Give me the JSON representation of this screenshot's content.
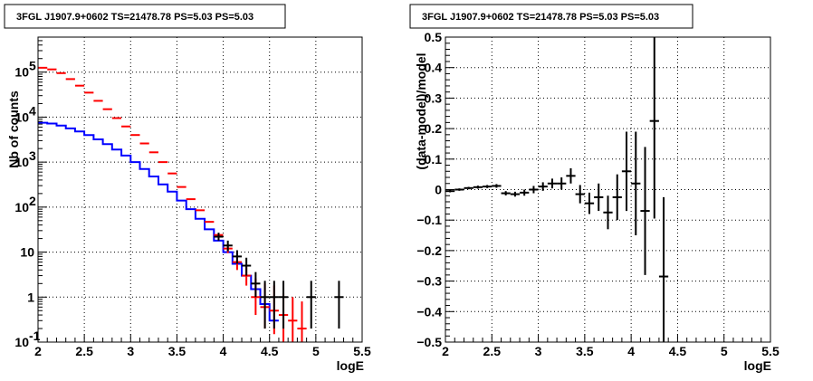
{
  "chart_data": [
    {
      "type": "step-histogram",
      "title": "3FGL J1907.9+0602 TS=21478.78 PS=5.03 PS=5.03",
      "xlabel": "logE",
      "ylabel": "Nb of counts",
      "xlim": [
        2,
        5.5
      ],
      "ylim": [
        0.1,
        600000
      ],
      "yscale": "log",
      "grid": true,
      "x_ticks": [
        "2",
        "2.5",
        "3",
        "3.5",
        "4",
        "4.5",
        "5",
        "5.5"
      ],
      "y_ticks": [
        {
          "value": 0.1,
          "label": "10",
          "exp": "-1"
        },
        {
          "value": 1,
          "label": "1",
          "exp": ""
        },
        {
          "value": 10,
          "label": "10",
          "exp": ""
        },
        {
          "value": 100,
          "label": "10",
          "exp": "2"
        },
        {
          "value": 1000,
          "label": "10",
          "exp": "3"
        },
        {
          "value": 10000,
          "label": "10",
          "exp": "4"
        },
        {
          "value": 100000,
          "label": "10",
          "exp": "5"
        }
      ],
      "bin_width": 0.1,
      "series": [
        {
          "color": "#0000ff",
          "style": "step",
          "x": [
            2.05,
            2.15,
            2.25,
            2.35,
            2.45,
            2.55,
            2.65,
            2.75,
            2.85,
            2.95,
            3.05,
            3.15,
            3.25,
            3.35,
            3.45,
            3.55,
            3.65,
            3.75,
            3.85,
            3.95,
            4.05,
            4.15,
            4.25,
            4.35,
            4.45,
            4.55
          ],
          "y": [
            7500,
            7200,
            6500,
            5600,
            4800,
            4000,
            3200,
            2500,
            1900,
            1400,
            1000,
            700,
            480,
            320,
            220,
            140,
            90,
            55,
            32,
            18,
            10,
            5.5,
            3,
            1.5,
            0.7,
            0.3
          ]
        },
        {
          "color": "#ff0000",
          "style": "error",
          "x": [
            2.05,
            2.15,
            2.25,
            2.35,
            2.45,
            2.55,
            2.65,
            2.75,
            2.85,
            2.95,
            3.05,
            3.15,
            3.25,
            3.35,
            3.45,
            3.55,
            3.65,
            3.75,
            3.85,
            3.95,
            4.05,
            4.15,
            4.25,
            4.35,
            4.45,
            4.55,
            4.65,
            4.75,
            4.85
          ],
          "y": [
            125000,
            115000,
            95000,
            70000,
            50000,
            35000,
            23000,
            15000,
            9500,
            6200,
            4000,
            2600,
            1650,
            1000,
            560,
            280,
            150,
            85,
            47,
            24,
            12,
            6,
            3,
            1,
            0.6,
            0.5,
            0.4,
            0.3,
            0.2
          ],
          "err_low": [
            0,
            0,
            0,
            0,
            0,
            0,
            0,
            0,
            0,
            0,
            0,
            0,
            0,
            0,
            0,
            0,
            0,
            0,
            0,
            0,
            2.5,
            2,
            1.2,
            0.6,
            0.4,
            0.35,
            0.3,
            0.22,
            0.15
          ],
          "err_high": [
            0,
            0,
            0,
            0,
            0,
            0,
            0,
            0,
            0,
            0,
            0,
            0,
            0,
            0,
            0,
            0,
            0,
            0,
            0,
            0,
            3,
            2.6,
            2,
            1.6,
            1.4,
            1.3,
            0.8,
            0.7,
            0.6
          ]
        },
        {
          "color": "#000000",
          "style": "error",
          "x": [
            3.95,
            4.05,
            4.15,
            4.25,
            4.35,
            4.45,
            4.55,
            4.65,
            4.95,
            5.25
          ],
          "y": [
            22,
            14,
            8,
            5,
            2,
            1,
            1,
            1,
            1,
            1
          ],
          "err_low": [
            4,
            3.5,
            2.5,
            2,
            1,
            0.8,
            0.8,
            0.8,
            0.8,
            0.8
          ],
          "err_high": [
            5,
            4,
            3,
            2.5,
            1.6,
            1.3,
            1.3,
            1.3,
            1.3,
            1.3
          ]
        }
      ]
    },
    {
      "type": "scatter-errorbar",
      "title": "3FGL J1907.9+0602 TS=21478.78 PS=5.03 PS=5.03",
      "xlabel": "logE",
      "ylabel": "(data-model)/model",
      "xlim": [
        2,
        5.5
      ],
      "ylim": [
        -0.5,
        0.5
      ],
      "grid": true,
      "x_ticks": [
        "2",
        "2.5",
        "3",
        "3.5",
        "4",
        "4.5",
        "5",
        "5.5"
      ],
      "y_ticks": [
        "-0.5",
        "-0.4",
        "-0.3",
        "-0.2",
        "-0.1",
        "0",
        "0.1",
        "0.2",
        "0.3",
        "0.4",
        "0.5"
      ],
      "series": [
        {
          "color": "#000000",
          "x": [
            2.05,
            2.15,
            2.25,
            2.35,
            2.45,
            2.55,
            2.65,
            2.75,
            2.85,
            2.95,
            3.05,
            3.15,
            3.25,
            3.35,
            3.45,
            3.55,
            3.65,
            3.75,
            3.85,
            3.95,
            4.05,
            4.15,
            4.25,
            4.35
          ],
          "y": [
            -0.005,
            0.0,
            0.005,
            0.008,
            0.01,
            0.012,
            -0.012,
            -0.015,
            -0.01,
            0.0,
            0.01,
            0.02,
            0.02,
            0.045,
            -0.015,
            -0.045,
            -0.025,
            -0.075,
            -0.025,
            0.06,
            0.02,
            -0.07,
            0.225,
            -0.285
          ],
          "err": [
            0.004,
            0.004,
            0.004,
            0.005,
            0.005,
            0.006,
            0.007,
            0.008,
            0.01,
            0.012,
            0.014,
            0.016,
            0.02,
            0.025,
            0.03,
            0.035,
            0.045,
            0.055,
            0.075,
            0.13,
            0.17,
            0.21,
            0.32,
            0.26
          ]
        }
      ]
    }
  ]
}
